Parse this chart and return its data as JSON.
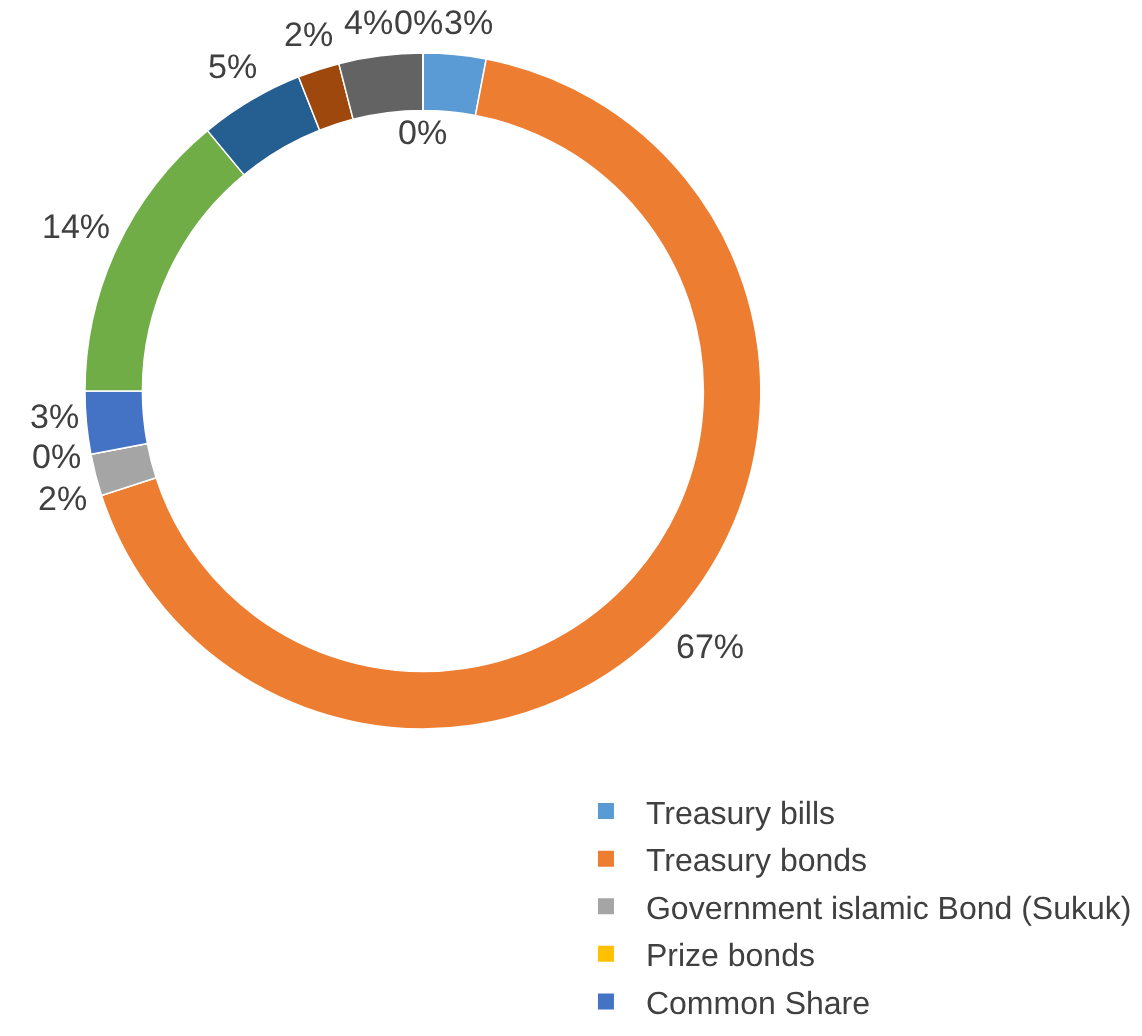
{
  "chart_data": {
    "type": "donut",
    "categories": [
      "Treasury bills",
      "Treasury bonds",
      "Government islamic Bond (Sukuk)",
      "Prize bonds",
      "Common Share",
      null,
      null,
      null,
      null,
      null,
      null
    ],
    "values": [
      3,
      67,
      2,
      0,
      3,
      14,
      5,
      2,
      4,
      0,
      0
    ],
    "value_labels": [
      "3%",
      "67%",
      "2%",
      "0%",
      "3%",
      "14%",
      "5%",
      "2%",
      "4%",
      "0%",
      "0%"
    ],
    "colors": [
      "#5b9bd5",
      "#ed7d31",
      "#a5a5a5",
      "#ffc000",
      "#4472c4",
      "#70ad47",
      "#255e91",
      "#9e480e",
      "#636363",
      "#997300",
      "#264478"
    ],
    "legend": "bottom right"
  }
}
